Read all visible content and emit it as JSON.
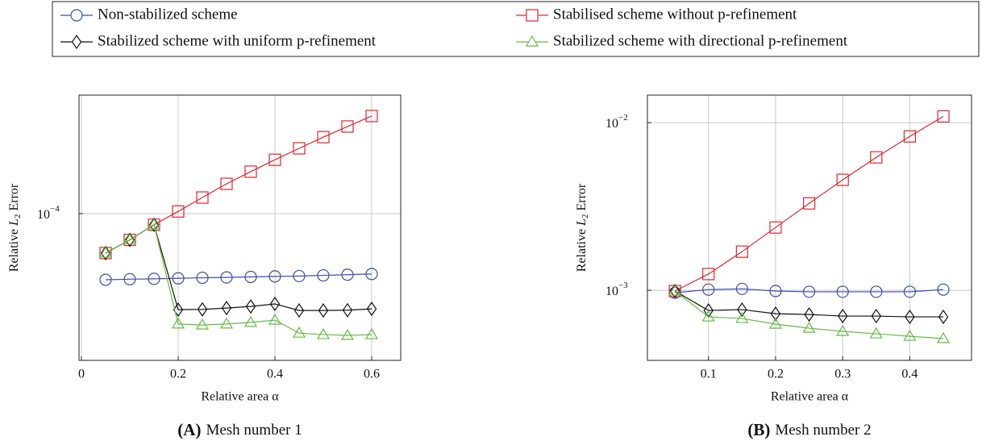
{
  "chart_data": [
    {
      "type": "line",
      "caption_label": "(A)",
      "title": "Mesh number 1",
      "xlabel": "Relative area α",
      "ylabel": [
        "Relative ",
        "L",
        "2",
        " Error"
      ],
      "yscale": "log",
      "grid": true,
      "xlim": [
        -0.005,
        0.66
      ],
      "ylim": [
        1.36e-05,
        0.000501
      ],
      "xticks": [
        0,
        0.2,
        0.4,
        0.6
      ],
      "yticks": [
        {
          "value": 0.0001,
          "label": "10",
          "exponent": "−4"
        }
      ],
      "x": [
        0.05,
        0.1,
        0.15,
        0.2,
        0.25,
        0.3,
        0.35,
        0.4,
        0.45,
        0.5,
        0.55,
        0.6
      ],
      "series": [
        {
          "name": "Non-stabilized scheme",
          "color": "#3c4ea8",
          "marker": "circle",
          "values": [
            4.07e-05,
            4.1e-05,
            4.12e-05,
            4.15e-05,
            4.18e-05,
            4.2e-05,
            4.23e-05,
            4.26e-05,
            4.28e-05,
            4.32e-05,
            4.36e-05,
            4.4e-05
          ]
        },
        {
          "name": "Stabilised scheme without p-refinement",
          "color": "#e0262b",
          "marker": "square",
          "values": [
            5.85e-05,
            7e-05,
            8.6e-05,
            0.000103,
            0.0001245,
            0.00015,
            0.000177,
            0.000208,
            0.000243,
            0.000283,
            0.000327,
            0.000377
          ]
        },
        {
          "name": "Stabilized scheme with uniform p-refinement",
          "color": "#111111",
          "marker": "diamond",
          "values": [
            5.85e-05,
            7e-05,
            8.6e-05,
            2.71e-05,
            2.72e-05,
            2.77e-05,
            2.83e-05,
            2.93e-05,
            2.68e-05,
            2.68e-05,
            2.69e-05,
            2.74e-05
          ]
        },
        {
          "name": "Stabilized scheme with directional p-refinement",
          "color": "#66bb44",
          "marker": "triangle",
          "values": [
            5.85e-05,
            7e-05,
            8.6e-05,
            2.23e-05,
            2.2e-05,
            2.23e-05,
            2.28e-05,
            2.35e-05,
            1.97e-05,
            1.93e-05,
            1.91e-05,
            1.93e-05
          ]
        }
      ]
    },
    {
      "type": "line",
      "caption_label": "(B)",
      "title": "Mesh number 2",
      "xlabel": "Relative area α",
      "ylabel": [
        "Relative ",
        "L",
        "2",
        " Error"
      ],
      "yscale": "log",
      "grid": true,
      "xlim": [
        0.009,
        0.492
      ],
      "ylim": [
        0.000382,
        0.0146
      ],
      "xticks": [
        0.1,
        0.2,
        0.3,
        0.4
      ],
      "yticks": [
        {
          "value": 0.001,
          "label": "10",
          "exponent": "−3"
        },
        {
          "value": 0.01,
          "label": "10",
          "exponent": "−2"
        }
      ],
      "x": [
        0.05,
        0.1,
        0.15,
        0.2,
        0.25,
        0.3,
        0.35,
        0.4,
        0.45
      ],
      "series": [
        {
          "color": "#3c4ea8",
          "marker": "circle",
          "values": [
            0.000967,
            0.00101,
            0.00102,
            0.00099,
            0.00098,
            0.00098,
            0.00098,
            0.00098,
            0.00101
          ]
        },
        {
          "color": "#e0262b",
          "marker": "square",
          "values": [
            0.00099,
            0.00125,
            0.0017,
            0.00237,
            0.0033,
            0.00456,
            0.00621,
            0.00828,
            0.0109
          ]
        },
        {
          "color": "#111111",
          "marker": "diamond",
          "values": [
            0.00099,
            0.000758,
            0.000767,
            0.000725,
            0.000717,
            0.000702,
            0.000702,
            0.000694,
            0.000694
          ]
        },
        {
          "color": "#66bb44",
          "marker": "triangle",
          "values": [
            0.00099,
            0.000694,
            0.000679,
            0.000628,
            0.000594,
            0.000569,
            0.00055,
            0.000532,
            0.000515
          ]
        }
      ]
    }
  ]
}
